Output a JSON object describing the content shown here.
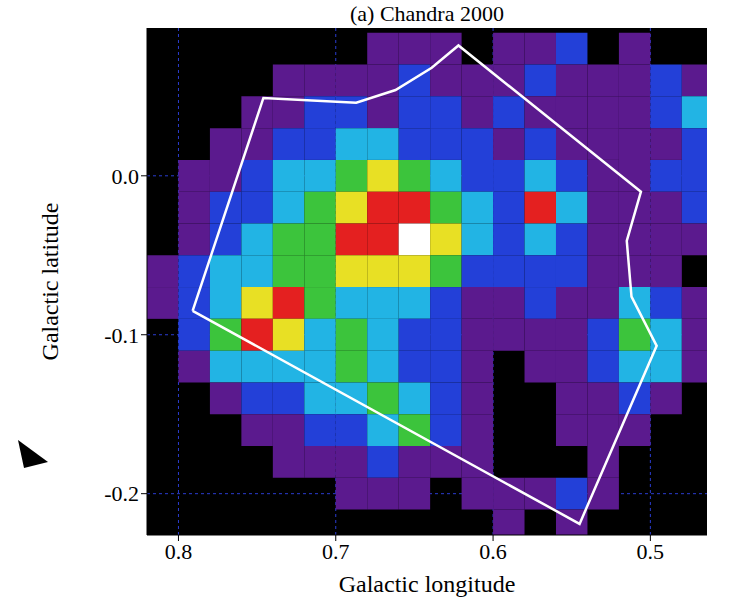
{
  "chart_data": {
    "type": "heatmap",
    "title": "(a) Chandra 2000",
    "x_label": "Galactic longitude",
    "y_label": "Galactic latitude",
    "xlim": [
      0.82,
      0.464
    ],
    "ylim": [
      -0.226,
      0.093
    ],
    "xticks": [
      0.8,
      0.7,
      0.6,
      0.5
    ],
    "yticks": [
      {
        "value": 0,
        "label": "0.0"
      },
      -0.1,
      -0.2
    ],
    "grid": true,
    "x": [
      0.81,
      0.79,
      0.77,
      0.75,
      0.73,
      0.71,
      0.69,
      0.67,
      0.65,
      0.63,
      0.61,
      0.59,
      0.57,
      0.55,
      0.53,
      0.51,
      0.49,
      0.47
    ],
    "y": [
      0.08,
      0.06,
      0.04,
      0.02,
      0.0,
      -0.02,
      -0.04,
      -0.06,
      -0.08,
      -0.1,
      -0.12,
      -0.14,
      -0.16,
      -0.18,
      -0.2,
      -0.22
    ],
    "z": [
      [
        0,
        0,
        0,
        0,
        0,
        0,
        0,
        1,
        1,
        1,
        0,
        1,
        1,
        2,
        0,
        1,
        0,
        0
      ],
      [
        0,
        0,
        0,
        0,
        1,
        1,
        1,
        1,
        2,
        1,
        1,
        1,
        2,
        1,
        1,
        1,
        2,
        1
      ],
      [
        0,
        0,
        0,
        1,
        1,
        2,
        2,
        1,
        2,
        2,
        1,
        2,
        1,
        1,
        1,
        1,
        2,
        3
      ],
      [
        0,
        0,
        1,
        1,
        2,
        2,
        3,
        3,
        2,
        2,
        2,
        1,
        2,
        1,
        1,
        1,
        1,
        2
      ],
      [
        0,
        1,
        1,
        2,
        3,
        3,
        4,
        5,
        4,
        3,
        2,
        2,
        3,
        2,
        1,
        1,
        2,
        2
      ],
      [
        0,
        1,
        2,
        2,
        3,
        4,
        5,
        6,
        6,
        4,
        3,
        2,
        6,
        3,
        1,
        1,
        1,
        2
      ],
      [
        0,
        1,
        2,
        3,
        4,
        4,
        6,
        6,
        7,
        5,
        3,
        2,
        3,
        2,
        1,
        1,
        1,
        1
      ],
      [
        1,
        2,
        3,
        3,
        4,
        4,
        5,
        5,
        5,
        4,
        2,
        2,
        2,
        2,
        1,
        1,
        1,
        0
      ],
      [
        1,
        2,
        3,
        5,
        6,
        4,
        3,
        3,
        3,
        2,
        1,
        1,
        2,
        1,
        1,
        3,
        2,
        1
      ],
      [
        0,
        2,
        4,
        6,
        5,
        3,
        4,
        3,
        2,
        2,
        1,
        1,
        1,
        1,
        2,
        4,
        3,
        1
      ],
      [
        0,
        1,
        3,
        3,
        3,
        3,
        4,
        3,
        2,
        2,
        1,
        0,
        1,
        1,
        2,
        3,
        3,
        1
      ],
      [
        0,
        0,
        1,
        2,
        2,
        3,
        3,
        4,
        3,
        2,
        1,
        0,
        0,
        1,
        1,
        2,
        1,
        0
      ],
      [
        0,
        0,
        0,
        1,
        1,
        2,
        2,
        3,
        4,
        2,
        1,
        0,
        0,
        1,
        1,
        1,
        0,
        0
      ],
      [
        0,
        0,
        0,
        0,
        1,
        1,
        1,
        2,
        1,
        1,
        1,
        0,
        0,
        0,
        1,
        0,
        0,
        0
      ],
      [
        0,
        0,
        0,
        0,
        0,
        0,
        1,
        1,
        1,
        0,
        1,
        1,
        1,
        2,
        1,
        0,
        0,
        0
      ],
      [
        0,
        0,
        0,
        0,
        0,
        0,
        0,
        0,
        0,
        0,
        0,
        1,
        0,
        1,
        0,
        0,
        0,
        0
      ]
    ],
    "zlim": [
      0,
      7
    ],
    "outline": [
      [
        0.791,
        -0.085
      ],
      [
        0.746,
        0.049
      ],
      [
        0.687,
        0.046
      ],
      [
        0.662,
        0.054
      ],
      [
        0.639,
        0.068
      ],
      [
        0.622,
        0.082
      ],
      [
        0.506,
        -0.01
      ],
      [
        0.515,
        -0.041
      ],
      [
        0.512,
        -0.076
      ],
      [
        0.496,
        -0.107
      ],
      [
        0.545,
        -0.219
      ]
    ]
  }
}
